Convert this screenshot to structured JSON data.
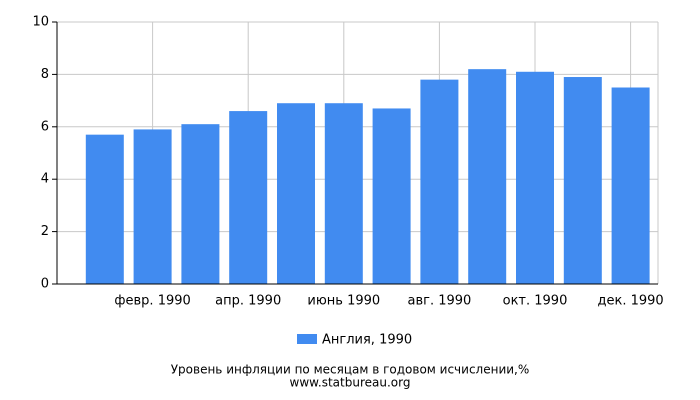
{
  "chart_data": {
    "type": "bar",
    "title": "Уровень инфляции по месяцам в годовом исчислении,%",
    "subtitle": "www.statbureau.org",
    "categories": [
      null,
      "февр. 1990",
      null,
      "апр. 1990",
      null,
      "июнь 1990",
      null,
      "авг. 1990",
      null,
      "окт. 1990",
      null,
      "дек. 1990"
    ],
    "series": [
      {
        "name": "Англия, 1990",
        "color": "#418bf0",
        "values": [
          5.7,
          5.9,
          6.1,
          6.6,
          6.9,
          6.9,
          6.7,
          7.8,
          8.2,
          8.1,
          7.9,
          7.5
        ]
      }
    ],
    "ylim": [
      0,
      10
    ],
    "yticks": [
      0,
      2,
      4,
      6,
      8,
      10
    ],
    "grid": true
  }
}
